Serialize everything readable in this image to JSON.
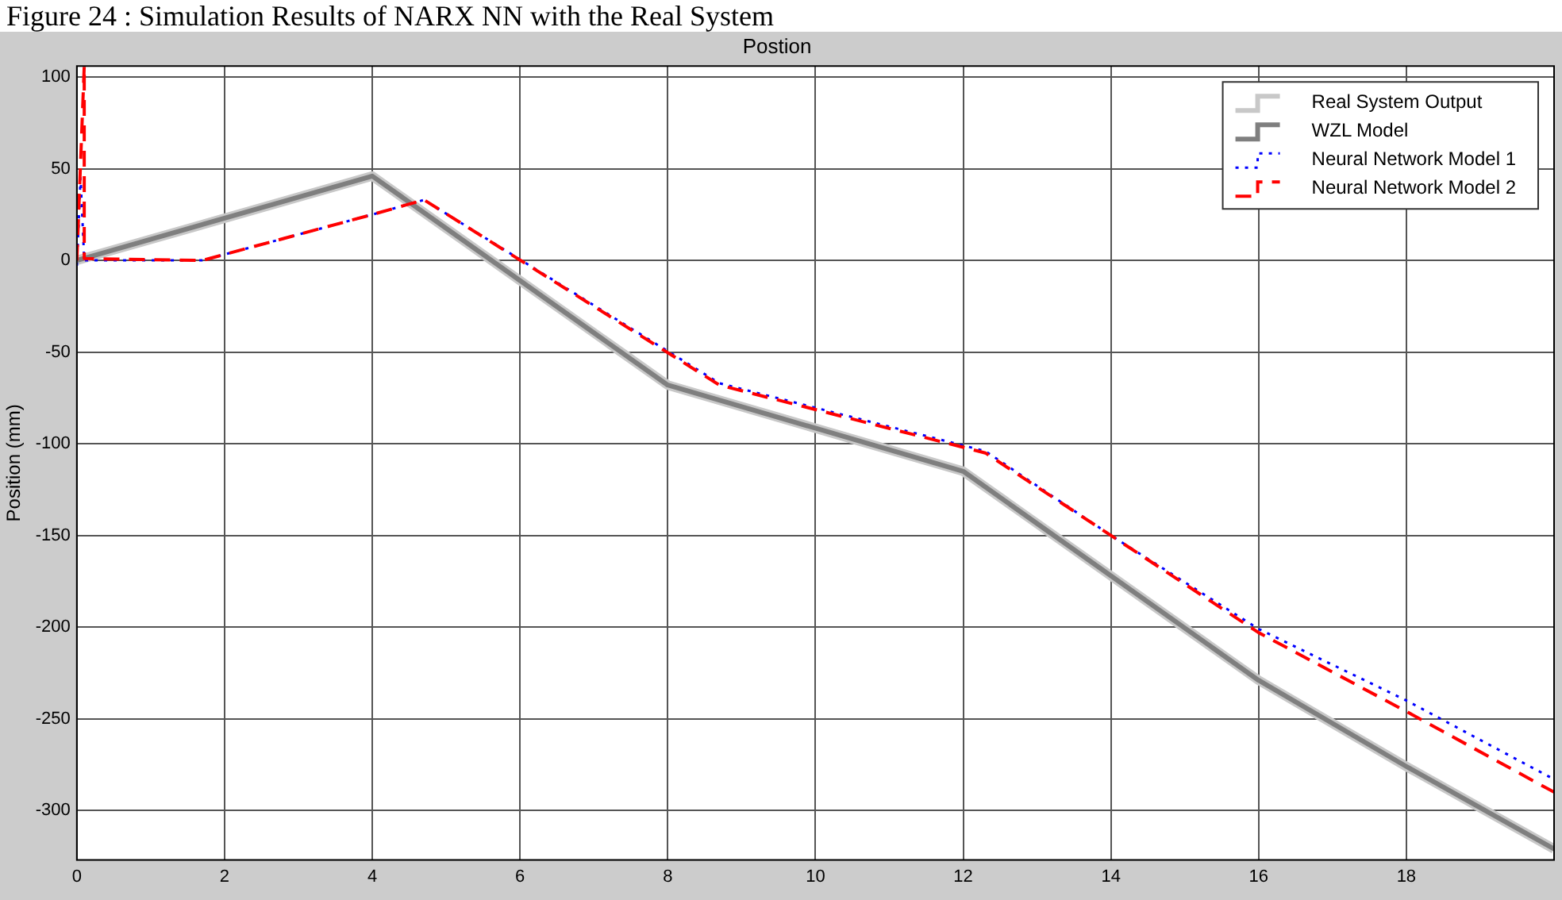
{
  "chart_data": {
    "type": "line",
    "title": "Postion",
    "ylabel": "Position (mm)",
    "annotations": [
      "Figure 24 : Simulation Results of NARX NN with the Real System"
    ],
    "xlim": [
      0,
      20
    ],
    "xticks": [
      0,
      2,
      4,
      6,
      8,
      10,
      12,
      14,
      16,
      18
    ],
    "ylim": [
      -327,
      106
    ],
    "yticks": [
      -300,
      -250,
      -200,
      -150,
      -100,
      -50,
      0,
      50,
      100
    ],
    "grid": true,
    "legend": "top right",
    "marker": "none",
    "series": [
      {
        "name": "Real System Output",
        "color": "#c8c8c8",
        "line_style": "solid",
        "x": [
          0,
          4,
          8,
          12,
          16,
          18,
          20
        ],
        "values": [
          0,
          46,
          -68,
          -115,
          -229,
          -276,
          -321
        ]
      },
      {
        "name": "WZL Model",
        "color": "#7f7f7f",
        "line_style": "solid",
        "x": [
          0,
          4,
          8,
          12,
          16,
          18,
          20
        ],
        "values": [
          0,
          46,
          -68,
          -115,
          -229,
          -276,
          -321
        ]
      },
      {
        "name": "Neural Network Model 1",
        "color": "#0000ff",
        "line_style": "dotted",
        "x": [
          0,
          0.05,
          0.1,
          1.7,
          4,
          4.7,
          8.7,
          12.3,
          14,
          16,
          18,
          20
        ],
        "values": [
          -3,
          45,
          0,
          0,
          25,
          33,
          -67,
          -104,
          -150,
          -201,
          -240,
          -283
        ]
      },
      {
        "name": "Neural Network Model 2",
        "color": "#ff0000",
        "line_style": "dashed",
        "x": [
          0,
          0.1,
          0.1,
          1.7,
          4,
          4.7,
          8.7,
          12.3,
          14,
          16,
          18,
          20
        ],
        "values": [
          0,
          106,
          1,
          0,
          25,
          33,
          -68,
          -105,
          -150,
          -203,
          -246,
          -290
        ]
      }
    ]
  }
}
